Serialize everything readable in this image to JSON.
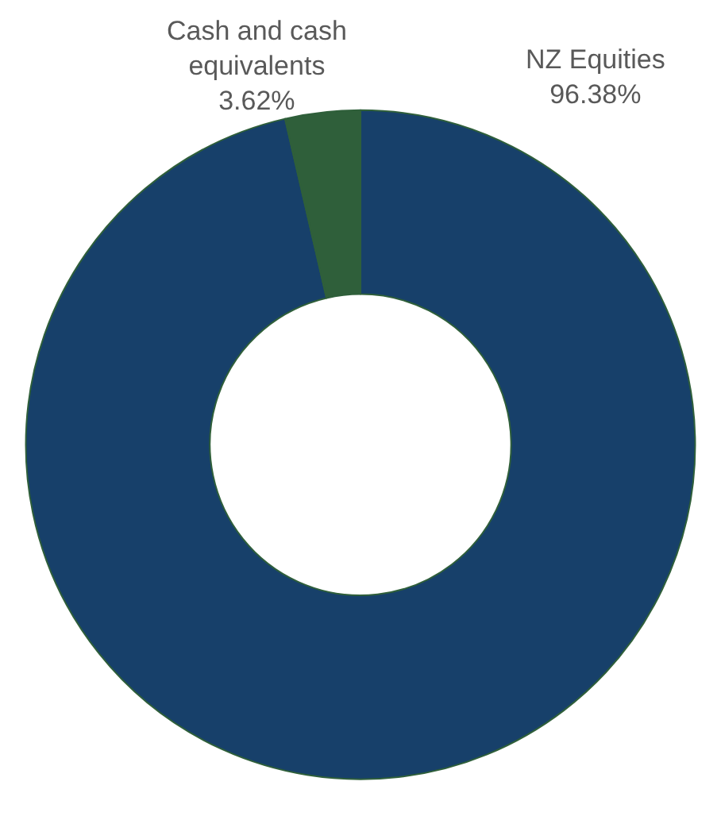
{
  "chart_data": {
    "type": "donut",
    "categories": [
      "NZ Equities",
      "Cash and cash equivalents"
    ],
    "values": [
      96.38,
      3.62
    ],
    "colors": [
      "#17406a",
      "#2f5f3a"
    ],
    "value_labels": [
      "96.38%",
      "3.62%"
    ],
    "legend": false
  }
}
